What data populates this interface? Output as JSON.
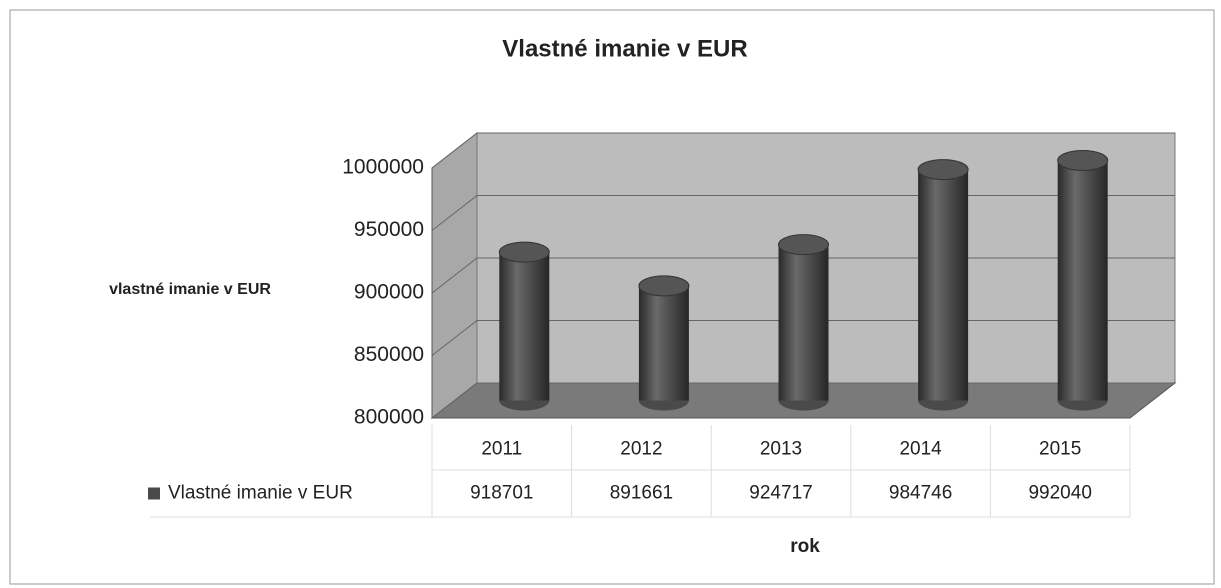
{
  "chart_data": {
    "type": "bar",
    "title": "Vlastné imanie v EUR",
    "y_label": "vlastné imanie v EUR",
    "x_label": "rok",
    "categories": [
      "2011",
      "2012",
      "2013",
      "2014",
      "2015"
    ],
    "series": [
      {
        "name": "Vlastné imanie v EUR",
        "color": "#4a4a4a",
        "values": [
          918701,
          891661,
          924717,
          984746,
          992040
        ]
      }
    ],
    "ylim": [
      800000,
      1000000
    ],
    "yticks": [
      800000,
      850000,
      900000,
      950000,
      1000000
    ],
    "grid": true
  }
}
